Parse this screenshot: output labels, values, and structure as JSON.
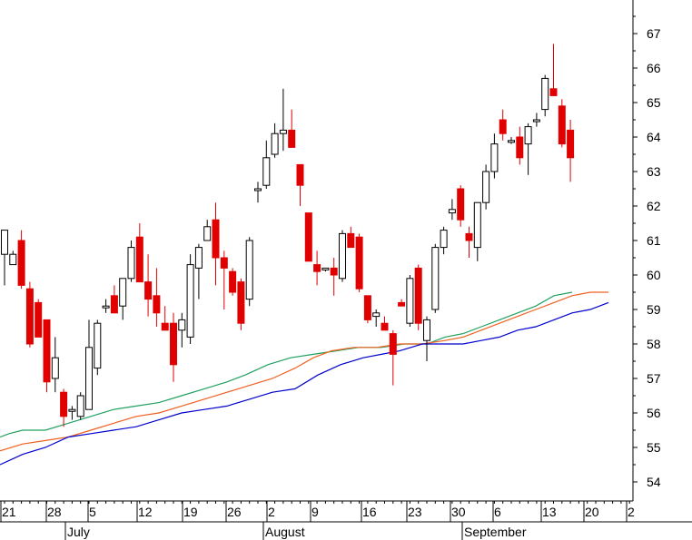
{
  "chart_data": {
    "type": "candlestick",
    "title": "",
    "xlabel": "",
    "ylabel": "",
    "ylim": [
      53.5,
      68
    ],
    "y_axis_side": "right",
    "y_ticks": [
      54,
      55,
      56,
      57,
      58,
      59,
      60,
      61,
      62,
      63,
      64,
      65,
      66,
      67
    ],
    "x_day_labels": [
      "21",
      "28",
      "5",
      "12",
      "19",
      "26",
      "2",
      "9",
      "16",
      "23",
      "30",
      "6",
      "13",
      "20",
      "2"
    ],
    "x_month_labels": [
      "July",
      "August",
      "September"
    ],
    "colors": {
      "up": "#ffffff",
      "down": "#e00000",
      "outline": "#000000",
      "ma_short": "#20a060",
      "ma_mid": "#f06020",
      "ma_long": "#0000cc"
    },
    "series": [
      {
        "type": "candles",
        "values": [
          [
            60.6,
            61.3,
            59.7,
            61.3
          ],
          [
            60.3,
            60.7,
            60.3,
            60.6
          ],
          [
            61.0,
            61.3,
            59.6,
            59.7
          ],
          [
            59.6,
            59.8,
            57.9,
            58.0
          ],
          [
            59.2,
            59.3,
            58.2,
            58.2
          ],
          [
            58.7,
            58.7,
            56.6,
            56.9
          ],
          [
            57.0,
            58.2,
            56.6,
            57.6
          ],
          [
            56.6,
            56.7,
            55.6,
            55.9
          ],
          [
            56.1,
            56.2,
            55.8,
            56.1
          ],
          [
            55.9,
            56.6,
            55.8,
            56.5
          ],
          [
            56.1,
            58.7,
            56.1,
            57.9
          ],
          [
            57.3,
            58.7,
            57.1,
            58.6
          ],
          [
            59.1,
            59.3,
            58.9,
            59.1
          ],
          [
            59.4,
            59.7,
            59.1,
            58.9
          ],
          [
            59.1,
            59.8,
            58.7,
            59.9
          ],
          [
            59.9,
            61.0,
            59.8,
            60.8
          ],
          [
            61.1,
            61.5,
            59.9,
            59.8
          ],
          [
            59.8,
            60.6,
            58.8,
            59.3
          ],
          [
            59.4,
            60.2,
            58.5,
            58.9
          ],
          [
            58.6,
            59.1,
            58.4,
            58.4
          ],
          [
            58.6,
            58.9,
            56.9,
            57.4
          ],
          [
            58.4,
            58.9,
            57.9,
            58.7
          ],
          [
            58.2,
            60.6,
            58.0,
            60.3
          ],
          [
            60.2,
            60.9,
            59.3,
            60.8
          ],
          [
            61.0,
            61.6,
            61.0,
            61.4
          ],
          [
            61.6,
            62.1,
            59.7,
            60.5
          ],
          [
            60.5,
            60.7,
            59.0,
            60.2
          ],
          [
            60.1,
            60.2,
            59.4,
            59.5
          ],
          [
            59.8,
            59.9,
            58.4,
            58.6
          ],
          [
            59.3,
            61.1,
            59.1,
            61.0
          ],
          [
            62.5,
            62.7,
            62.1,
            62.5
          ],
          [
            62.6,
            63.9,
            62.5,
            63.4
          ],
          [
            63.5,
            64.4,
            63.4,
            64.1
          ],
          [
            64.1,
            65.4,
            63.6,
            64.2
          ],
          [
            64.2,
            64.8,
            63.7,
            63.7
          ],
          [
            63.2,
            63.2,
            62.0,
            62.6
          ],
          [
            61.8,
            61.8,
            60.7,
            60.4
          ],
          [
            60.3,
            60.7,
            59.7,
            60.1
          ],
          [
            60.2,
            60.2,
            60.1,
            60.2
          ],
          [
            60.2,
            60.5,
            59.4,
            60.0
          ],
          [
            59.9,
            61.3,
            59.8,
            61.2
          ],
          [
            61.2,
            61.4,
            61.0,
            60.8
          ],
          [
            61.1,
            61.2,
            59.5,
            59.6
          ],
          [
            59.4,
            59.4,
            58.6,
            58.7
          ],
          [
            58.8,
            59.0,
            58.5,
            58.9
          ],
          [
            58.6,
            58.8,
            58.4,
            58.4
          ],
          [
            58.3,
            58.4,
            56.8,
            57.7
          ],
          [
            59.2,
            59.3,
            59.1,
            59.1
          ],
          [
            58.6,
            60.0,
            58.5,
            59.9
          ],
          [
            60.2,
            60.3,
            58.4,
            58.6
          ],
          [
            58.1,
            58.8,
            57.5,
            58.7
          ],
          [
            59.0,
            60.9,
            58.9,
            60.8
          ],
          [
            60.8,
            61.4,
            60.6,
            61.3
          ],
          [
            61.8,
            62.2,
            61.6,
            61.9
          ],
          [
            62.5,
            62.6,
            61.4,
            61.6
          ],
          [
            61.2,
            61.4,
            60.5,
            61.0
          ],
          [
            60.8,
            62.1,
            60.4,
            62.1
          ],
          [
            62.1,
            63.2,
            61.9,
            63.0
          ],
          [
            63.0,
            64.1,
            62.8,
            63.8
          ],
          [
            64.5,
            64.8,
            63.9,
            64.1
          ],
          [
            63.9,
            64.0,
            63.8,
            63.9
          ],
          [
            64.0,
            64.3,
            63.2,
            63.4
          ],
          [
            63.8,
            64.4,
            62.9,
            64.3
          ],
          [
            64.5,
            64.7,
            64.3,
            64.5
          ],
          [
            64.8,
            65.8,
            64.6,
            65.7
          ],
          [
            65.4,
            66.7,
            65.2,
            65.2
          ],
          [
            64.9,
            65.1,
            63.7,
            63.8
          ],
          [
            64.2,
            64.5,
            62.7,
            63.4
          ]
        ]
      },
      {
        "type": "line",
        "key": "ma_short",
        "values": [
          [
            0,
            55.3
          ],
          [
            10,
            55.4
          ],
          [
            25,
            55.5
          ],
          [
            50,
            55.5
          ],
          [
            75,
            55.7
          ],
          [
            100,
            55.9
          ],
          [
            125,
            56.1
          ],
          [
            150,
            56.2
          ],
          [
            175,
            56.3
          ],
          [
            200,
            56.5
          ],
          [
            225,
            56.7
          ],
          [
            250,
            56.9
          ],
          [
            270,
            57.1
          ],
          [
            295,
            57.4
          ],
          [
            320,
            57.6
          ],
          [
            345,
            57.7
          ],
          [
            370,
            57.8
          ],
          [
            395,
            57.9
          ],
          [
            420,
            57.9
          ],
          [
            445,
            58.0
          ],
          [
            470,
            58.0
          ],
          [
            490,
            58.2
          ],
          [
            510,
            58.3
          ],
          [
            530,
            58.5
          ],
          [
            550,
            58.7
          ],
          [
            570,
            58.9
          ],
          [
            590,
            59.1
          ],
          [
            610,
            59.4
          ],
          [
            630,
            59.5
          ]
        ]
      },
      {
        "type": "line",
        "key": "ma_mid",
        "values": [
          [
            0,
            54.9
          ],
          [
            25,
            55.1
          ],
          [
            50,
            55.2
          ],
          [
            75,
            55.3
          ],
          [
            100,
            55.5
          ],
          [
            125,
            55.7
          ],
          [
            150,
            55.9
          ],
          [
            175,
            56.0
          ],
          [
            200,
            56.2
          ],
          [
            225,
            56.4
          ],
          [
            250,
            56.6
          ],
          [
            275,
            56.8
          ],
          [
            300,
            57.0
          ],
          [
            325,
            57.3
          ],
          [
            345,
            57.6
          ],
          [
            365,
            57.8
          ],
          [
            390,
            57.9
          ],
          [
            415,
            57.9
          ],
          [
            440,
            58.0
          ],
          [
            465,
            58.0
          ],
          [
            490,
            58.1
          ],
          [
            510,
            58.2
          ],
          [
            530,
            58.4
          ],
          [
            550,
            58.6
          ],
          [
            570,
            58.8
          ],
          [
            590,
            59.0
          ],
          [
            610,
            59.2
          ],
          [
            630,
            59.4
          ],
          [
            650,
            59.5
          ],
          [
            670,
            59.5
          ]
        ]
      },
      {
        "type": "line",
        "key": "ma_long",
        "values": [
          [
            0,
            54.5
          ],
          [
            25,
            54.8
          ],
          [
            50,
            55.0
          ],
          [
            75,
            55.3
          ],
          [
            100,
            55.4
          ],
          [
            125,
            55.5
          ],
          [
            150,
            55.6
          ],
          [
            175,
            55.8
          ],
          [
            200,
            56.0
          ],
          [
            225,
            56.1
          ],
          [
            250,
            56.2
          ],
          [
            275,
            56.4
          ],
          [
            300,
            56.6
          ],
          [
            325,
            56.7
          ],
          [
            350,
            57.1
          ],
          [
            375,
            57.4
          ],
          [
            400,
            57.6
          ],
          [
            420,
            57.7
          ],
          [
            440,
            57.8
          ],
          [
            465,
            58.0
          ],
          [
            490,
            58.0
          ],
          [
            510,
            58.0
          ],
          [
            530,
            58.1
          ],
          [
            550,
            58.2
          ],
          [
            570,
            58.4
          ],
          [
            590,
            58.5
          ],
          [
            610,
            58.7
          ],
          [
            630,
            58.9
          ],
          [
            650,
            59.0
          ],
          [
            670,
            59.2
          ]
        ]
      }
    ]
  }
}
